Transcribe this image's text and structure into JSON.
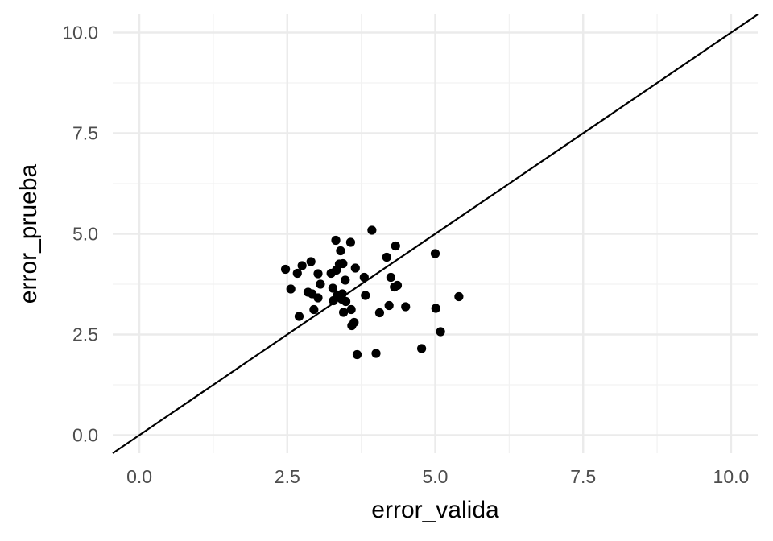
{
  "chart_data": {
    "type": "scatter",
    "title": "",
    "xlabel": "error_valida",
    "ylabel": "error_prueba",
    "xlim": [
      -0.45,
      10.45
    ],
    "ylim": [
      -0.45,
      10.45
    ],
    "x_ticks": [
      0.0,
      2.5,
      5.0,
      7.5,
      10.0
    ],
    "y_ticks": [
      0.0,
      2.5,
      5.0,
      7.5,
      10.0
    ],
    "x_tick_labels": [
      "0.0",
      "2.5",
      "5.0",
      "7.5",
      "10.0"
    ],
    "y_tick_labels": [
      "0.0",
      "2.5",
      "5.0",
      "7.5",
      "10.0"
    ],
    "grid": true,
    "reference_line": {
      "intercept": 0,
      "slope": 1
    },
    "colors": {
      "point": "#000000",
      "line": "#000000",
      "grid_major": "#ebebeb",
      "grid_minor": "#f2f2f2"
    },
    "points": [
      [
        2.47,
        4.12
      ],
      [
        2.56,
        3.63
      ],
      [
        2.67,
        4.02
      ],
      [
        2.7,
        2.95
      ],
      [
        2.75,
        4.21
      ],
      [
        2.85,
        3.55
      ],
      [
        2.9,
        4.31
      ],
      [
        2.92,
        3.51
      ],
      [
        2.95,
        3.12
      ],
      [
        3.02,
        3.41
      ],
      [
        3.02,
        4.01
      ],
      [
        3.06,
        3.75
      ],
      [
        3.24,
        4.02
      ],
      [
        3.27,
        3.65
      ],
      [
        3.28,
        3.34
      ],
      [
        3.32,
        4.84
      ],
      [
        3.33,
        4.1
      ],
      [
        3.35,
        3.48
      ],
      [
        3.38,
        4.25
      ],
      [
        3.4,
        4.58
      ],
      [
        3.42,
        3.38
      ],
      [
        3.43,
        3.51
      ],
      [
        3.44,
        4.26
      ],
      [
        3.45,
        3.05
      ],
      [
        3.48,
        3.85
      ],
      [
        3.49,
        3.32
      ],
      [
        3.57,
        4.79
      ],
      [
        3.58,
        3.12
      ],
      [
        3.59,
        2.72
      ],
      [
        3.63,
        2.8
      ],
      [
        3.65,
        4.15
      ],
      [
        3.68,
        2.0
      ],
      [
        3.8,
        3.92
      ],
      [
        3.82,
        3.47
      ],
      [
        3.93,
        5.09
      ],
      [
        4.0,
        2.03
      ],
      [
        4.06,
        3.04
      ],
      [
        4.18,
        4.42
      ],
      [
        4.22,
        3.22
      ],
      [
        4.25,
        3.92
      ],
      [
        4.31,
        3.68
      ],
      [
        4.33,
        4.7
      ],
      [
        4.36,
        3.72
      ],
      [
        4.5,
        3.19
      ],
      [
        4.77,
        2.15
      ],
      [
        5.0,
        4.51
      ],
      [
        5.01,
        3.15
      ],
      [
        5.09,
        2.57
      ],
      [
        5.4,
        3.44
      ]
    ]
  }
}
